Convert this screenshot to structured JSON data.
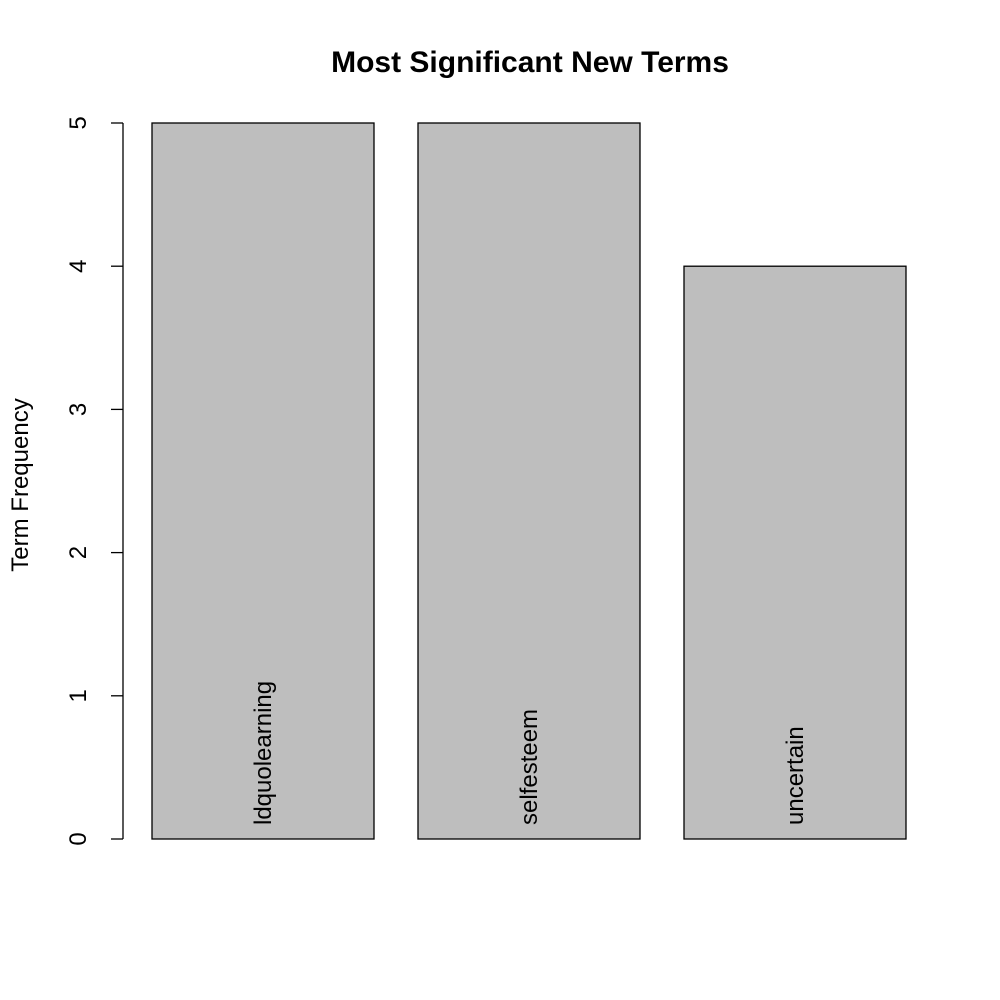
{
  "chart_data": {
    "type": "bar",
    "title": "Most Significant New Terms",
    "xlabel": "",
    "ylabel": "Term Frequency",
    "categories": [
      "ldquolearning",
      "selfesteem",
      "uncertain"
    ],
    "values": [
      5,
      5,
      4
    ],
    "ylim": [
      0,
      5
    ],
    "yticks": [
      0,
      1,
      2,
      3,
      4,
      5
    ],
    "grid": false,
    "bar_color": "#bebebe",
    "border_color": "#000000",
    "category_labels_inside_bars": true,
    "category_label_orientation": "vertical"
  }
}
